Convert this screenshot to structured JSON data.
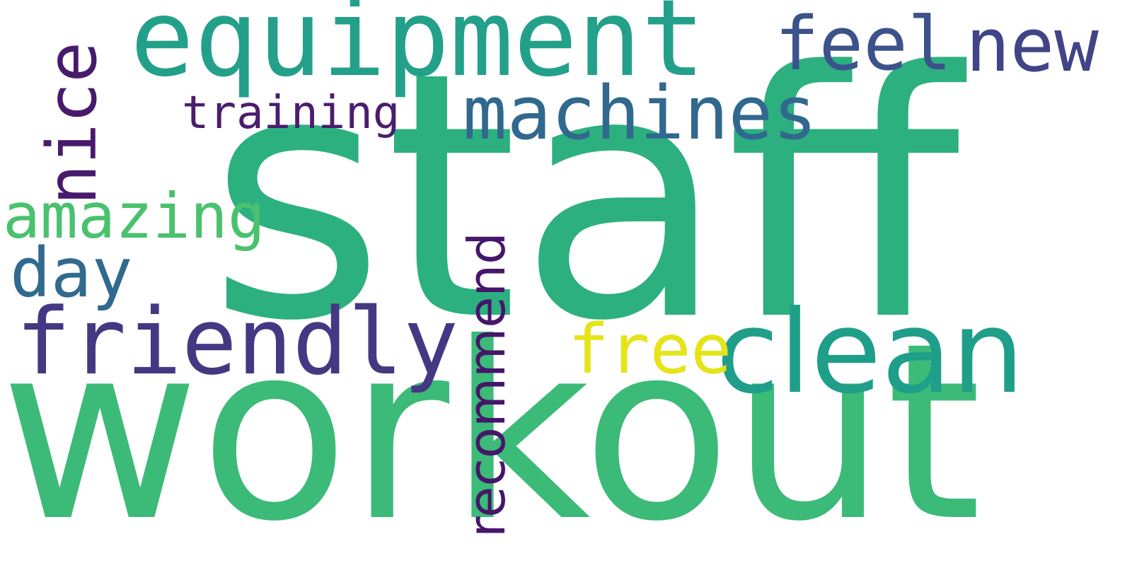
{
  "word_cloud": {
    "background": "#ffffff",
    "words": [
      {
        "key": "staff",
        "text": "staff",
        "color": "#2db07f",
        "orientation": "horizontal"
      },
      {
        "key": "workout",
        "text": "workout",
        "color": "#3cba78",
        "orientation": "horizontal"
      },
      {
        "key": "equipment",
        "text": "equipment",
        "color": "#23a08a",
        "orientation": "horizontal"
      },
      {
        "key": "clean",
        "text": "clean",
        "color": "#1f9e89",
        "orientation": "horizontal"
      },
      {
        "key": "friendly",
        "text": "friendly",
        "color": "#453883",
        "orientation": "horizontal"
      },
      {
        "key": "machines",
        "text": "machines",
        "color": "#31688e",
        "orientation": "horizontal"
      },
      {
        "key": "feel",
        "text": "feel",
        "color": "#3b528b",
        "orientation": "horizontal"
      },
      {
        "key": "new",
        "text": "new",
        "color": "#414487",
        "orientation": "horizontal"
      },
      {
        "key": "free",
        "text": "free",
        "color": "#e4e419",
        "orientation": "horizontal"
      },
      {
        "key": "nice",
        "text": "nice",
        "color": "#481a6c",
        "orientation": "vertical"
      },
      {
        "key": "amazing",
        "text": "amazing",
        "color": "#4ac16d",
        "orientation": "horizontal"
      },
      {
        "key": "day",
        "text": "day",
        "color": "#306a8e",
        "orientation": "horizontal"
      },
      {
        "key": "training",
        "text": "training",
        "color": "#4a1d6e",
        "orientation": "horizontal"
      },
      {
        "key": "recommend",
        "text": "recommend",
        "color": "#46166a",
        "orientation": "vertical"
      }
    ]
  }
}
